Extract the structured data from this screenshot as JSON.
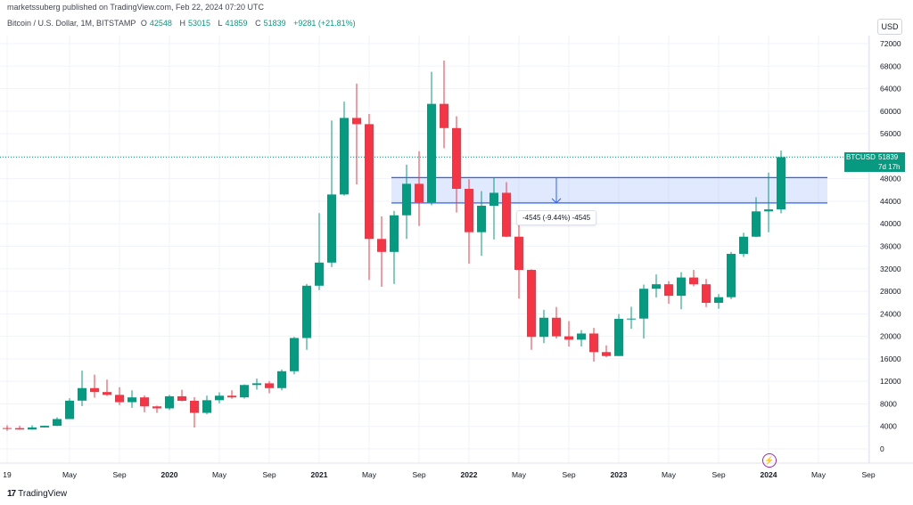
{
  "header": {
    "published": "marketssuberg published on TradingView.com, Feb 22, 2024 07:20 UTC",
    "symbol": "Bitcoin / U.S. Dollar, 1M, BITSTAMP",
    "o_label": "O",
    "o_value": "42548",
    "h_label": "H",
    "h_value": "53015",
    "l_label": "L",
    "l_value": "41859",
    "c_label": "C",
    "c_value": "51839",
    "change": "+9281 (+21.81%)"
  },
  "axis": {
    "currency": "USD",
    "price_ticks": [
      "72000",
      "68000",
      "64000",
      "60000",
      "56000",
      "52000",
      "48000",
      "44000",
      "40000",
      "36000",
      "32000",
      "28000",
      "24000",
      "20000",
      "16000",
      "12000",
      "8000",
      "4000",
      "0"
    ],
    "time_ticks": [
      "19",
      "May",
      "Sep",
      "2020",
      "May",
      "Sep",
      "2021",
      "May",
      "Sep",
      "2022",
      "May",
      "Sep",
      "2023",
      "May",
      "Sep",
      "2024",
      "May",
      "Sep"
    ]
  },
  "price_tag": {
    "symbol": "BTCUSD",
    "price": "51839",
    "countdown": "7d 17h"
  },
  "measure": {
    "label": "-4545 (-9.44%) -4545"
  },
  "footer": {
    "brand": "TradingView",
    "mark": "17"
  },
  "colors": {
    "up": "#089981",
    "down": "#f23645",
    "zone": "#2962ff"
  },
  "chart_data": {
    "type": "candlestick",
    "title": "Bitcoin / U.S. Dollar, 1M, BITSTAMP",
    "ylim": [
      -1500,
      74000
    ],
    "candles": [
      {
        "date": "2018-12",
        "o": 3700,
        "h": 4200,
        "l": 3200,
        "c": 3690
      },
      {
        "date": "2019-01",
        "o": 3690,
        "h": 4100,
        "l": 3400,
        "c": 3440
      },
      {
        "date": "2019-02",
        "o": 3440,
        "h": 4200,
        "l": 3400,
        "c": 3810
      },
      {
        "date": "2019-03",
        "o": 3810,
        "h": 4150,
        "l": 3800,
        "c": 4100
      },
      {
        "date": "2019-04",
        "o": 4100,
        "h": 5600,
        "l": 4050,
        "c": 5300
      },
      {
        "date": "2019-05",
        "o": 5300,
        "h": 9000,
        "l": 5300,
        "c": 8570
      },
      {
        "date": "2019-06",
        "o": 8570,
        "h": 13900,
        "l": 7600,
        "c": 10800
      },
      {
        "date": "2019-07",
        "o": 10800,
        "h": 13200,
        "l": 9100,
        "c": 10100
      },
      {
        "date": "2019-08",
        "o": 10100,
        "h": 12300,
        "l": 9400,
        "c": 9600
      },
      {
        "date": "2019-09",
        "o": 9600,
        "h": 10950,
        "l": 7800,
        "c": 8300
      },
      {
        "date": "2019-10",
        "o": 8300,
        "h": 10400,
        "l": 7300,
        "c": 9150
      },
      {
        "date": "2019-11",
        "o": 9150,
        "h": 9500,
        "l": 6500,
        "c": 7550
      },
      {
        "date": "2019-12",
        "o": 7550,
        "h": 7700,
        "l": 6400,
        "c": 7200
      },
      {
        "date": "2020-01",
        "o": 7200,
        "h": 9600,
        "l": 6900,
        "c": 9350
      },
      {
        "date": "2020-02",
        "o": 9350,
        "h": 10500,
        "l": 8450,
        "c": 8550
      },
      {
        "date": "2020-03",
        "o": 8550,
        "h": 9200,
        "l": 3800,
        "c": 6400
      },
      {
        "date": "2020-04",
        "o": 6400,
        "h": 9450,
        "l": 6150,
        "c": 8650
      },
      {
        "date": "2020-05",
        "o": 8650,
        "h": 10050,
        "l": 8100,
        "c": 9450
      },
      {
        "date": "2020-06",
        "o": 9450,
        "h": 10400,
        "l": 8900,
        "c": 9150
      },
      {
        "date": "2020-07",
        "o": 9150,
        "h": 11450,
        "l": 8950,
        "c": 11350
      },
      {
        "date": "2020-08",
        "o": 11350,
        "h": 12500,
        "l": 10550,
        "c": 11650
      },
      {
        "date": "2020-09",
        "o": 11650,
        "h": 12050,
        "l": 9900,
        "c": 10800
      },
      {
        "date": "2020-10",
        "o": 10800,
        "h": 14100,
        "l": 10400,
        "c": 13800
      },
      {
        "date": "2020-11",
        "o": 13800,
        "h": 19900,
        "l": 13250,
        "c": 19700
      },
      {
        "date": "2020-12",
        "o": 19700,
        "h": 29300,
        "l": 17600,
        "c": 28990
      },
      {
        "date": "2021-01",
        "o": 28990,
        "h": 41900,
        "l": 28200,
        "c": 33100
      },
      {
        "date": "2021-02",
        "o": 33100,
        "h": 58350,
        "l": 32300,
        "c": 45200
      },
      {
        "date": "2021-03",
        "o": 45200,
        "h": 61700,
        "l": 45000,
        "c": 58800
      },
      {
        "date": "2021-04",
        "o": 58800,
        "h": 64900,
        "l": 47000,
        "c": 57700
      },
      {
        "date": "2021-05",
        "o": 57700,
        "h": 59500,
        "l": 30000,
        "c": 37300
      },
      {
        "date": "2021-06",
        "o": 37300,
        "h": 41300,
        "l": 28800,
        "c": 35000
      },
      {
        "date": "2021-07",
        "o": 35000,
        "h": 42300,
        "l": 29300,
        "c": 41500
      },
      {
        "date": "2021-08",
        "o": 41500,
        "h": 50500,
        "l": 37300,
        "c": 47100
      },
      {
        "date": "2021-09",
        "o": 47100,
        "h": 52900,
        "l": 39600,
        "c": 43800
      },
      {
        "date": "2021-10",
        "o": 43800,
        "h": 67000,
        "l": 43300,
        "c": 61300
      },
      {
        "date": "2021-11",
        "o": 61300,
        "h": 69000,
        "l": 53400,
        "c": 57000
      },
      {
        "date": "2021-12",
        "o": 57000,
        "h": 59100,
        "l": 42000,
        "c": 46200
      },
      {
        "date": "2022-01",
        "o": 46200,
        "h": 47900,
        "l": 32900,
        "c": 38500
      },
      {
        "date": "2022-02",
        "o": 38500,
        "h": 45800,
        "l": 34300,
        "c": 43200
      },
      {
        "date": "2022-03",
        "o": 43200,
        "h": 48200,
        "l": 37200,
        "c": 45500
      },
      {
        "date": "2022-04",
        "o": 45500,
        "h": 47400,
        "l": 37600,
        "c": 37700
      },
      {
        "date": "2022-05",
        "o": 37700,
        "h": 40000,
        "l": 26700,
        "c": 31800
      },
      {
        "date": "2022-06",
        "o": 31800,
        "h": 31900,
        "l": 17600,
        "c": 19900
      },
      {
        "date": "2022-07",
        "o": 19900,
        "h": 24700,
        "l": 18800,
        "c": 23300
      },
      {
        "date": "2022-08",
        "o": 23300,
        "h": 25200,
        "l": 19600,
        "c": 20000
      },
      {
        "date": "2022-09",
        "o": 20000,
        "h": 22700,
        "l": 18200,
        "c": 19400
      },
      {
        "date": "2022-10",
        "o": 19400,
        "h": 21100,
        "l": 18200,
        "c": 20500
      },
      {
        "date": "2022-11",
        "o": 20500,
        "h": 21500,
        "l": 15500,
        "c": 17200
      },
      {
        "date": "2022-12",
        "o": 17200,
        "h": 18400,
        "l": 16300,
        "c": 16500
      },
      {
        "date": "2023-01",
        "o": 16500,
        "h": 23950,
        "l": 16500,
        "c": 23100
      },
      {
        "date": "2023-02",
        "o": 23100,
        "h": 25250,
        "l": 21350,
        "c": 23150
      },
      {
        "date": "2023-03",
        "o": 23150,
        "h": 29200,
        "l": 19600,
        "c": 28450
      },
      {
        "date": "2023-04",
        "o": 28450,
        "h": 31000,
        "l": 26900,
        "c": 29250
      },
      {
        "date": "2023-05",
        "o": 29250,
        "h": 29800,
        "l": 25800,
        "c": 27200
      },
      {
        "date": "2023-06",
        "o": 27200,
        "h": 31400,
        "l": 24800,
        "c": 30450
      },
      {
        "date": "2023-07",
        "o": 30450,
        "h": 31800,
        "l": 28900,
        "c": 29250
      },
      {
        "date": "2023-08",
        "o": 29250,
        "h": 30200,
        "l": 25200,
        "c": 25950
      },
      {
        "date": "2023-09",
        "o": 25950,
        "h": 27500,
        "l": 24900,
        "c": 26950
      },
      {
        "date": "2023-10",
        "o": 26950,
        "h": 35000,
        "l": 26600,
        "c": 34650
      },
      {
        "date": "2023-11",
        "o": 34650,
        "h": 38400,
        "l": 34100,
        "c": 37700
      },
      {
        "date": "2023-12",
        "o": 37700,
        "h": 44700,
        "l": 37600,
        "c": 42200
      },
      {
        "date": "2024-01",
        "o": 42200,
        "h": 49100,
        "l": 38500,
        "c": 42550
      },
      {
        "date": "2024-02",
        "o": 42548,
        "h": 53015,
        "l": 41859,
        "c": 51839
      }
    ],
    "zone": {
      "top": 48200,
      "bottom": 43700,
      "from": "2021-07",
      "to": "2024-05"
    },
    "current_price": 51839
  }
}
